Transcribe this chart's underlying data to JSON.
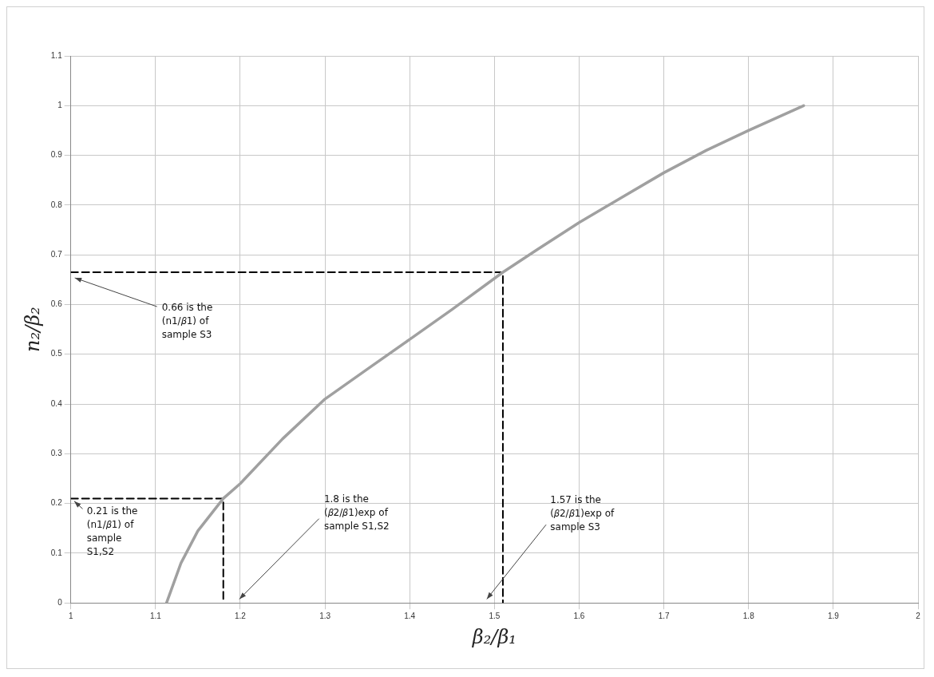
{
  "chart_data": {
    "type": "line",
    "xlabel": "β₂/β₁",
    "ylabel": "n₂/β₂",
    "xlim": [
      1,
      2
    ],
    "xticks": [
      1,
      1.1,
      1.2,
      1.3,
      1.4,
      1.5,
      1.6,
      1.7,
      1.8,
      1.9,
      2
    ],
    "ylim": [
      0,
      1.1
    ],
    "yticks": [
      0,
      0.1,
      0.2,
      0.3,
      0.4,
      0.5,
      0.6,
      0.7,
      0.8,
      0.9,
      1,
      1.1
    ],
    "grid": true,
    "legend": false,
    "marker": "none",
    "series": [
      {
        "type": "line",
        "color": "#a0a0a0",
        "line_style": "solid",
        "x": [
          1.113,
          1.13,
          1.15,
          1.18,
          1.2,
          1.25,
          1.3,
          1.35,
          1.4,
          1.45,
          1.51,
          1.55,
          1.6,
          1.65,
          1.7,
          1.75,
          1.8,
          1.865
        ],
        "values": [
          0,
          0.08,
          0.145,
          0.21,
          0.24,
          0.33,
          0.41,
          0.47,
          0.53,
          0.59,
          0.665,
          0.71,
          0.765,
          0.815,
          0.865,
          0.91,
          0.95,
          1.0
        ]
      },
      {
        "type": "line",
        "color": "#000000",
        "line_style": "dashed",
        "x": [
          1,
          1.51,
          1.51
        ],
        "values": [
          0.665,
          0.665,
          0
        ]
      },
      {
        "type": "line",
        "color": "#000000",
        "line_style": "dashed",
        "x": [
          1,
          1.18,
          1.18
        ],
        "values": [
          0.21,
          0.21,
          0
        ]
      }
    ],
    "annotations": [
      {
        "text": "0.66 is the\n(n1/𝛽1) of\nsample S3",
        "x": 1,
        "y": 0.66
      },
      "0.21 is the\n(n1/𝛽1) of\nsample\nS1,S2",
      "1.8 is the\n(𝛽2/𝛽1)exp of\nsample S1,S2",
      "1.57 is the\n(𝛽2/𝛽1)exp of\nsample S3"
    ]
  }
}
